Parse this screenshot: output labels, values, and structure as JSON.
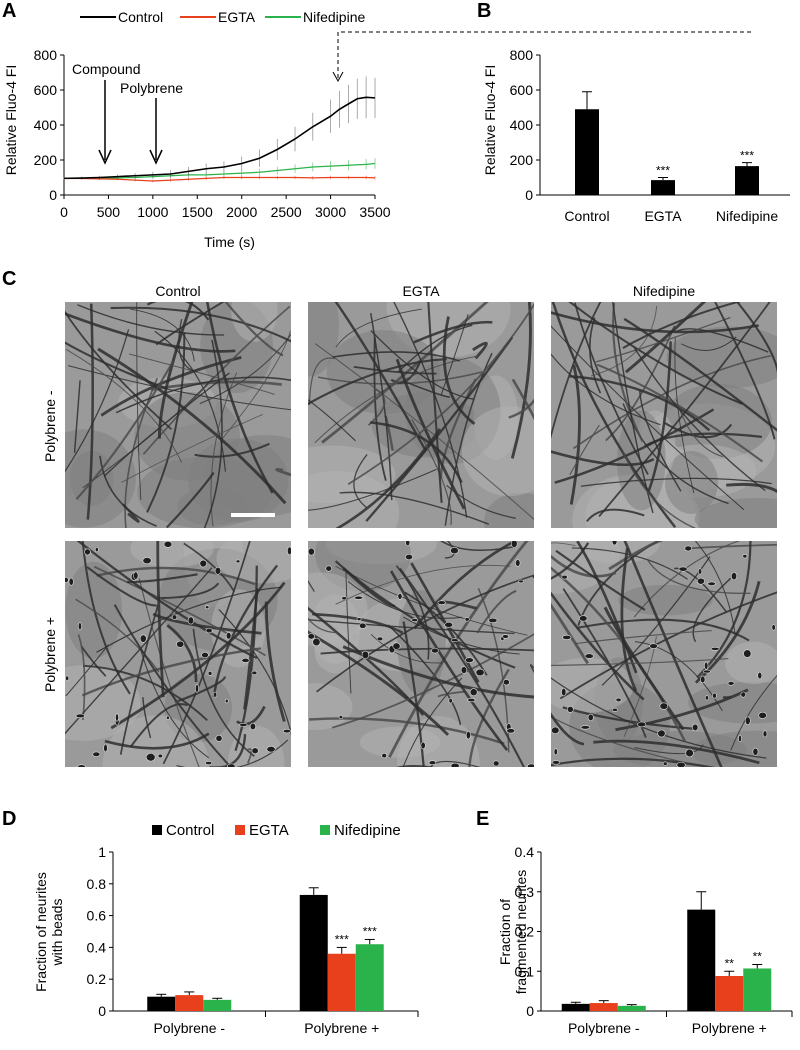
{
  "panels": {
    "A": "A",
    "B": "B",
    "C": "C",
    "D": "D",
    "E": "E"
  },
  "micrographs": {
    "columns": [
      "Control",
      "EGTA",
      "Nifedipine"
    ],
    "rows": [
      "Polybrene -",
      "Polybrene +"
    ]
  },
  "colors": {
    "control": "#000000",
    "egta": "#e8401c",
    "nifedipine": "#2bb34b"
  },
  "chart_data": [
    {
      "id": "A",
      "type": "line",
      "title": "",
      "xlabel": "Time (s)",
      "ylabel": "Relative Fluo-4 FI",
      "xlim": [
        0,
        3500
      ],
      "ylim": [
        0,
        800
      ],
      "xticks": [
        0,
        500,
        1000,
        1500,
        2000,
        2500,
        3000,
        3500
      ],
      "yticks": [
        0,
        200,
        400,
        600,
        800
      ],
      "legend_position": "top",
      "annotations": [
        "Compound",
        "Polybrene"
      ],
      "series": [
        {
          "name": "Control",
          "x": [
            0,
            200,
            400,
            600,
            800,
            1000,
            1200,
            1400,
            1600,
            1800,
            2000,
            2200,
            2400,
            2600,
            2800,
            3000,
            3100,
            3200,
            3300,
            3400,
            3500
          ],
          "y": [
            95,
            97,
            100,
            105,
            110,
            115,
            120,
            135,
            150,
            160,
            180,
            210,
            260,
            320,
            390,
            450,
            490,
            520,
            550,
            558,
            555
          ],
          "err": [
            8,
            8,
            10,
            12,
            15,
            18,
            22,
            25,
            30,
            32,
            40,
            50,
            60,
            70,
            80,
            95,
            105,
            110,
            115,
            120,
            115
          ]
        },
        {
          "name": "EGTA",
          "x": [
            0,
            200,
            400,
            600,
            800,
            1000,
            1200,
            1400,
            1600,
            1800,
            2000,
            2200,
            2400,
            2600,
            2800,
            3000,
            3200,
            3400,
            3500
          ],
          "y": [
            95,
            94,
            92,
            90,
            85,
            80,
            85,
            90,
            95,
            100,
            100,
            100,
            100,
            100,
            98,
            100,
            100,
            100,
            98
          ],
          "err": [
            5,
            5,
            6,
            6,
            8,
            8,
            10,
            10,
            10,
            10,
            10,
            10,
            10,
            10,
            10,
            10,
            10,
            10,
            10
          ]
        },
        {
          "name": "Nifedipine",
          "x": [
            0,
            200,
            400,
            600,
            800,
            1000,
            1200,
            1400,
            1600,
            1800,
            2000,
            2200,
            2400,
            2600,
            2800,
            3000,
            3200,
            3400,
            3500
          ],
          "y": [
            95,
            96,
            97,
            98,
            100,
            105,
            110,
            115,
            115,
            120,
            125,
            130,
            140,
            150,
            160,
            165,
            170,
            175,
            180
          ],
          "err": [
            6,
            6,
            8,
            8,
            10,
            12,
            12,
            15,
            15,
            15,
            18,
            20,
            22,
            25,
            25,
            28,
            30,
            30,
            30
          ]
        }
      ]
    },
    {
      "id": "B",
      "type": "bar",
      "title": "",
      "xlabel": "",
      "ylabel": "Relative Fluo-4 FI",
      "ylim": [
        0,
        800
      ],
      "yticks": [
        0,
        200,
        400,
        600,
        800
      ],
      "categories": [
        "Control",
        "EGTA",
        "Nifedipine"
      ],
      "values": [
        490,
        85,
        165
      ],
      "errors": [
        100,
        15,
        20
      ],
      "significance": [
        "",
        "***",
        "***"
      ]
    },
    {
      "id": "D",
      "type": "bar",
      "title": "",
      "xlabel": "",
      "ylabel": "Fraction of neurites with beads",
      "ylim": [
        0,
        1
      ],
      "yticks": [
        0,
        0.2,
        0.4,
        0.6,
        0.8,
        1
      ],
      "legend_position": "top",
      "categories": [
        "Polybrene -",
        "Polybrene +"
      ],
      "series": [
        {
          "name": "Control",
          "values": [
            0.09,
            0.73
          ],
          "errors": [
            0.015,
            0.045
          ],
          "significance": [
            "",
            ""
          ]
        },
        {
          "name": "EGTA",
          "values": [
            0.1,
            0.36
          ],
          "errors": [
            0.02,
            0.04
          ],
          "significance": [
            "",
            "***"
          ]
        },
        {
          "name": "Nifedipine",
          "values": [
            0.07,
            0.42
          ],
          "errors": [
            0.01,
            0.03
          ],
          "significance": [
            "",
            "***"
          ]
        }
      ]
    },
    {
      "id": "E",
      "type": "bar",
      "title": "",
      "xlabel": "",
      "ylabel": "Fraction of fragmented neurites",
      "ylim": [
        0,
        0.4
      ],
      "yticks": [
        0,
        0.1,
        0.2,
        0.3,
        0.4
      ],
      "categories": [
        "Polybrene -",
        "Polybrene +"
      ],
      "series": [
        {
          "name": "Control",
          "values": [
            0.018,
            0.255
          ],
          "errors": [
            0.004,
            0.045
          ],
          "significance": [
            "",
            ""
          ]
        },
        {
          "name": "EGTA",
          "values": [
            0.02,
            0.088
          ],
          "errors": [
            0.006,
            0.012
          ],
          "significance": [
            "",
            "**"
          ]
        },
        {
          "name": "Nifedipine",
          "values": [
            0.013,
            0.107
          ],
          "errors": [
            0.003,
            0.01
          ],
          "significance": [
            "",
            "**"
          ]
        }
      ]
    }
  ]
}
